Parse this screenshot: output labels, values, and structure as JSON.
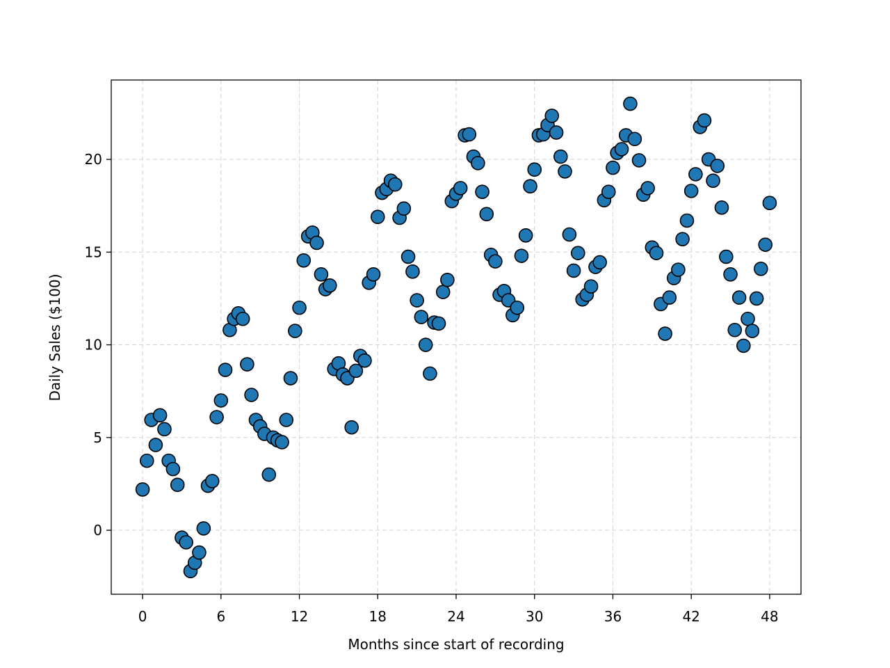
{
  "chart_data": {
    "type": "scatter",
    "xlabel": "Months since start of recording",
    "ylabel": "Daily Sales ($100)",
    "x": [
      0,
      0.33,
      0.67,
      1,
      1.33,
      1.67,
      2,
      2.33,
      2.67,
      3,
      3.33,
      3.67,
      4,
      4.33,
      4.67,
      5,
      5.33,
      5.67,
      6,
      6.33,
      6.67,
      7,
      7.33,
      7.67,
      8,
      8.33,
      8.67,
      9,
      9.33,
      9.67,
      10,
      10.33,
      10.67,
      11,
      11.33,
      11.67,
      12,
      12.33,
      12.67,
      13,
      13.33,
      13.67,
      14,
      14.33,
      14.67,
      15,
      15.33,
      15.67,
      16,
      16.33,
      16.67,
      17,
      17.33,
      17.67,
      18,
      18.33,
      18.67,
      19,
      19.33,
      19.67,
      20,
      20.33,
      20.67,
      21,
      21.33,
      21.67,
      22,
      22.33,
      22.67,
      23,
      23.33,
      23.67,
      24,
      24.33,
      24.67,
      25,
      25.33,
      25.67,
      26,
      26.33,
      26.67,
      27,
      27.33,
      27.67,
      28,
      28.33,
      28.67,
      29,
      29.33,
      29.67,
      30,
      30.33,
      30.67,
      31,
      31.33,
      31.67,
      32,
      32.33,
      32.67,
      33,
      33.33,
      33.67,
      34,
      34.33,
      34.67,
      35,
      35.33,
      35.67,
      36,
      36.33,
      36.67,
      37,
      37.33,
      37.67,
      38,
      38.33,
      38.67,
      39,
      39.33,
      39.67,
      40,
      40.33,
      40.67,
      41,
      41.33,
      41.67,
      42,
      42.33,
      42.67,
      43,
      43.33,
      43.67,
      44,
      44.33,
      44.67,
      45,
      45.33,
      45.67,
      46,
      46.33,
      46.67,
      47,
      47.33,
      47.67,
      48
    ],
    "values": [
      2.2,
      3.75,
      5.95,
      4.6,
      6.2,
      5.45,
      3.75,
      3.3,
      2.45,
      -0.4,
      -0.65,
      -2.2,
      -1.75,
      -1.2,
      0.1,
      2.4,
      2.65,
      6.1,
      7.0,
      8.65,
      10.8,
      11.4,
      11.7,
      11.4,
      8.95,
      7.3,
      5.95,
      5.6,
      5.2,
      3.0,
      5.0,
      4.85,
      4.75,
      5.95,
      8.2,
      10.75,
      12.0,
      14.55,
      15.85,
      16.05,
      15.5,
      13.8,
      13.0,
      13.2,
      8.7,
      9.0,
      8.4,
      8.2,
      5.55,
      8.6,
      9.4,
      9.15,
      13.35,
      13.8,
      16.9,
      18.2,
      18.4,
      18.85,
      18.65,
      16.85,
      17.35,
      14.75,
      13.95,
      12.4,
      11.5,
      10.0,
      8.45,
      11.2,
      11.15,
      12.85,
      13.5,
      17.75,
      18.15,
      18.45,
      21.3,
      21.35,
      20.15,
      19.8,
      18.25,
      17.05,
      14.85,
      14.5,
      12.7,
      12.9,
      12.4,
      11.6,
      12.0,
      14.8,
      15.9,
      18.55,
      19.45,
      21.3,
      21.35,
      21.85,
      22.35,
      21.45,
      20.15,
      19.35,
      15.95,
      14.0,
      14.95,
      12.45,
      12.7,
      13.15,
      14.2,
      14.45,
      17.8,
      18.25,
      19.55,
      20.35,
      20.55,
      21.3,
      23.0,
      21.1,
      19.95,
      18.1,
      18.45,
      15.25,
      14.95,
      12.2,
      10.6,
      12.55,
      13.6,
      14.05,
      15.7,
      16.7,
      18.3,
      19.2,
      21.75,
      22.1,
      20.0,
      18.85,
      19.65,
      17.4,
      14.75,
      13.8,
      10.8,
      12.55,
      9.95,
      11.4,
      10.75,
      12.5,
      14.1,
      15.4,
      17.65
    ],
    "color": "#1f77b4",
    "xlim": [
      -2.4,
      50.4
    ],
    "ylim": [
      -3.45,
      24.28
    ],
    "xticks": [
      0,
      6,
      12,
      18,
      24,
      30,
      36,
      42,
      48
    ],
    "yticks": [
      0,
      5,
      10,
      15,
      20
    ],
    "grid": true
  }
}
